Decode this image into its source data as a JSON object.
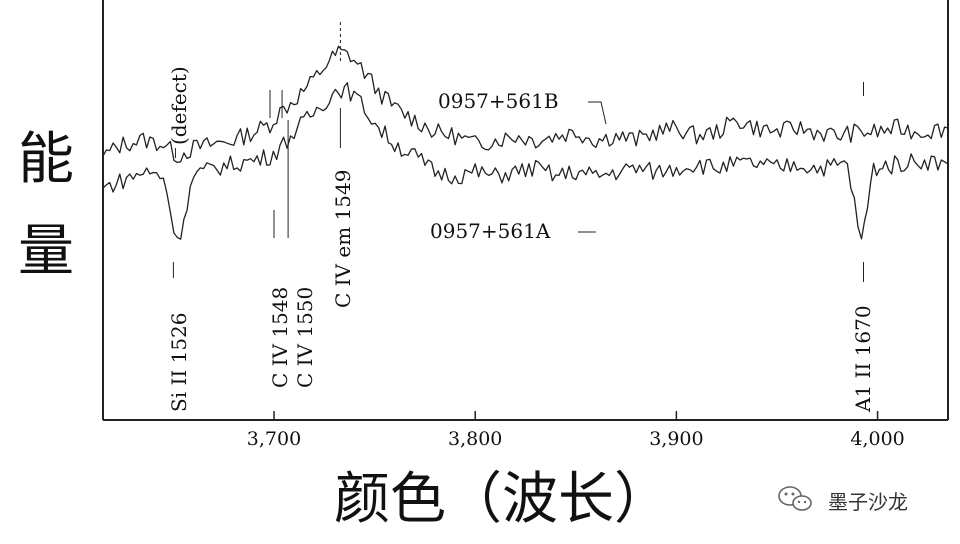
{
  "chart_data": {
    "type": "line",
    "xlabel": "颜色（波长）",
    "ylabel": "能量",
    "xlim": [
      3615,
      4035
    ],
    "ylim": [
      0,
      1
    ],
    "x_ticks": [
      {
        "value": 3700,
        "label": "3,700"
      },
      {
        "value": 3800,
        "label": "3,800"
      },
      {
        "value": 3900,
        "label": "3,900"
      },
      {
        "value": 4000,
        "label": "4,000"
      }
    ],
    "grid": false,
    "series": [
      {
        "name": "0957+561B",
        "label_x": 3865,
        "label_y": 0.74,
        "points": [
          [
            3615,
            0.66
          ],
          [
            3625,
            0.69
          ],
          [
            3635,
            0.7
          ],
          [
            3645,
            0.69
          ],
          [
            3652,
            0.66
          ],
          [
            3660,
            0.68
          ],
          [
            3670,
            0.69
          ],
          [
            3680,
            0.7
          ],
          [
            3690,
            0.72
          ],
          [
            3698,
            0.74
          ],
          [
            3703,
            0.77
          ],
          [
            3710,
            0.8
          ],
          [
            3718,
            0.84
          ],
          [
            3726,
            0.89
          ],
          [
            3732,
            0.92
          ],
          [
            3738,
            0.91
          ],
          [
            3745,
            0.87
          ],
          [
            3752,
            0.82
          ],
          [
            3760,
            0.78
          ],
          [
            3770,
            0.75
          ],
          [
            3780,
            0.72
          ],
          [
            3790,
            0.71
          ],
          [
            3800,
            0.69
          ],
          [
            3810,
            0.7
          ],
          [
            3820,
            0.71
          ],
          [
            3830,
            0.7
          ],
          [
            3840,
            0.71
          ],
          [
            3850,
            0.72
          ],
          [
            3860,
            0.7
          ],
          [
            3870,
            0.71
          ],
          [
            3880,
            0.7
          ],
          [
            3890,
            0.72
          ],
          [
            3900,
            0.73
          ],
          [
            3910,
            0.71
          ],
          [
            3920,
            0.72
          ],
          [
            3930,
            0.75
          ],
          [
            3940,
            0.73
          ],
          [
            3950,
            0.72
          ],
          [
            3960,
            0.73
          ],
          [
            3970,
            0.72
          ],
          [
            3980,
            0.71
          ],
          [
            3990,
            0.72
          ],
          [
            4000,
            0.72
          ],
          [
            4010,
            0.73
          ],
          [
            4020,
            0.72
          ],
          [
            4035,
            0.73
          ]
        ],
        "dips": [
          [
            3652,
            0.6
          ],
          [
            3698,
            0.66
          ],
          [
            3703,
            0.7
          ]
        ]
      },
      {
        "name": "0957+561A",
        "label_x": 3860,
        "label_y": 0.47,
        "points": [
          [
            3615,
            0.58
          ],
          [
            3625,
            0.6
          ],
          [
            3635,
            0.62
          ],
          [
            3645,
            0.61
          ],
          [
            3652,
            0.44
          ],
          [
            3660,
            0.61
          ],
          [
            3670,
            0.63
          ],
          [
            3680,
            0.64
          ],
          [
            3690,
            0.65
          ],
          [
            3698,
            0.66
          ],
          [
            3703,
            0.68
          ],
          [
            3710,
            0.72
          ],
          [
            3718,
            0.76
          ],
          [
            3726,
            0.8
          ],
          [
            3732,
            0.83
          ],
          [
            3738,
            0.82
          ],
          [
            3745,
            0.78
          ],
          [
            3752,
            0.73
          ],
          [
            3760,
            0.69
          ],
          [
            3770,
            0.66
          ],
          [
            3780,
            0.62
          ],
          [
            3790,
            0.61
          ],
          [
            3800,
            0.62
          ],
          [
            3810,
            0.61
          ],
          [
            3820,
            0.62
          ],
          [
            3830,
            0.63
          ],
          [
            3840,
            0.61
          ],
          [
            3850,
            0.62
          ],
          [
            3860,
            0.61
          ],
          [
            3870,
            0.62
          ],
          [
            3880,
            0.63
          ],
          [
            3890,
            0.62
          ],
          [
            3900,
            0.63
          ],
          [
            3910,
            0.64
          ],
          [
            3920,
            0.63
          ],
          [
            3930,
            0.64
          ],
          [
            3940,
            0.64
          ],
          [
            3950,
            0.63
          ],
          [
            3960,
            0.64
          ],
          [
            3970,
            0.63
          ],
          [
            3985,
            0.64
          ],
          [
            3992,
            0.44
          ],
          [
            3998,
            0.63
          ],
          [
            4010,
            0.64
          ],
          [
            4020,
            0.65
          ],
          [
            4035,
            0.64
          ]
        ]
      }
    ],
    "annotations": [
      {
        "text": "Si II 1526",
        "x": 3650
      },
      {
        "text": "C IV 1548",
        "x": 3700
      },
      {
        "text": "C IV 1550",
        "x": 3707
      },
      {
        "text": "C IV em 1549",
        "x": 3733
      },
      {
        "text": "(defect)",
        "x": 3651
      },
      {
        "text": "A1 II 1670",
        "x": 3993
      }
    ]
  },
  "watermark": {
    "text": "墨子沙龙",
    "icon": "wechat-icon"
  }
}
